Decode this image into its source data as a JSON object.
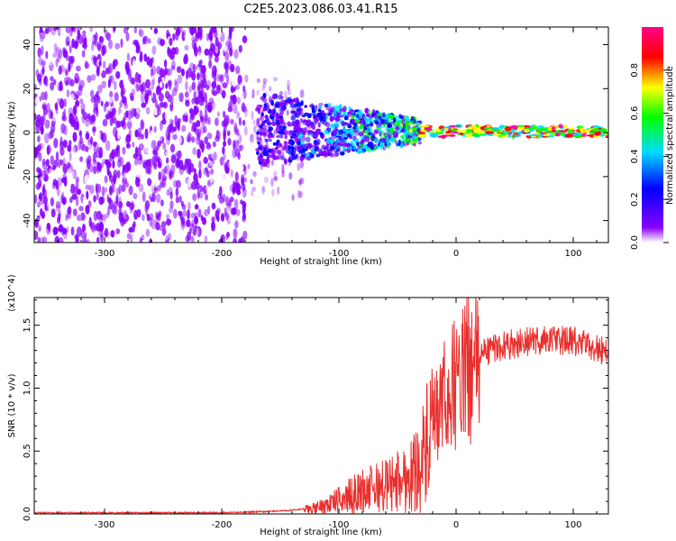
{
  "title": "C2E5.2023.086.03.41.R15",
  "chart_data": [
    {
      "type": "heatmap",
      "xlabel": "Height of straight line (km)",
      "ylabel": "Frequency (Hz)",
      "xlim": [
        -360,
        130
      ],
      "ylim": [
        -50,
        48
      ],
      "xticks": [
        -300,
        -200,
        -100,
        0,
        100
      ],
      "yticks": [
        -40,
        -20,
        0,
        20,
        40
      ],
      "colorbar": {
        "label": "Normalized spectral amplitude",
        "range": [
          0,
          1
        ],
        "ticks": [
          "0.0",
          "0.2",
          "0.4",
          "0.6",
          "0.8"
        ],
        "colormap": [
          "#ffffff",
          "#8800ff",
          "#0000ff",
          "#00ddff",
          "#00ff00",
          "#ffff00",
          "#ff0000",
          "#ff00aa"
        ]
      },
      "regions": [
        {
          "x": [
            -360,
            -180
          ],
          "freq": [
            -50,
            48
          ],
          "amplitude": 0.1,
          "pattern": "scattered noise"
        },
        {
          "x": [
            -180,
            -130
          ],
          "freq": [
            -30,
            25
          ],
          "amplitude": 0.1,
          "pattern": "fading noise"
        },
        {
          "x": [
            -170,
            -30
          ],
          "freq": [
            -15,
            18
          ],
          "amplitude": 0.2,
          "pattern": "broadband signal narrowing toward x=0"
        },
        {
          "x": [
            -30,
            130
          ],
          "freq": [
            -2,
            3
          ],
          "amplitude": 0.5,
          "pattern": "narrow line near 0 Hz"
        }
      ]
    },
    {
      "type": "line",
      "xlabel": "Height of straight line (km)",
      "ylabel": "SNR (10 * v/v)",
      "y_multiplier": "(x10^4)",
      "xlim": [
        -360,
        130
      ],
      "ylim": [
        0,
        1.72
      ],
      "xticks": [
        -300,
        -200,
        -100,
        0,
        100
      ],
      "yticks": [
        "0.0",
        "0.5",
        "1.0",
        "1.5"
      ],
      "color": "#e8302e",
      "x": [
        -360,
        -300,
        -200,
        -160,
        -140,
        -120,
        -100,
        -80,
        -60,
        -40,
        -30,
        -20,
        -15,
        -10,
        0,
        10,
        20,
        30,
        40,
        60,
        80,
        100,
        120,
        130
      ],
      "y": [
        0.01,
        0.01,
        0.01,
        0.02,
        0.03,
        0.05,
        0.12,
        0.2,
        0.25,
        0.32,
        0.45,
        0.7,
        0.85,
        0.95,
        1.1,
        1.2,
        1.28,
        1.32,
        1.35,
        1.38,
        1.4,
        1.38,
        1.33,
        1.3
      ]
    }
  ]
}
